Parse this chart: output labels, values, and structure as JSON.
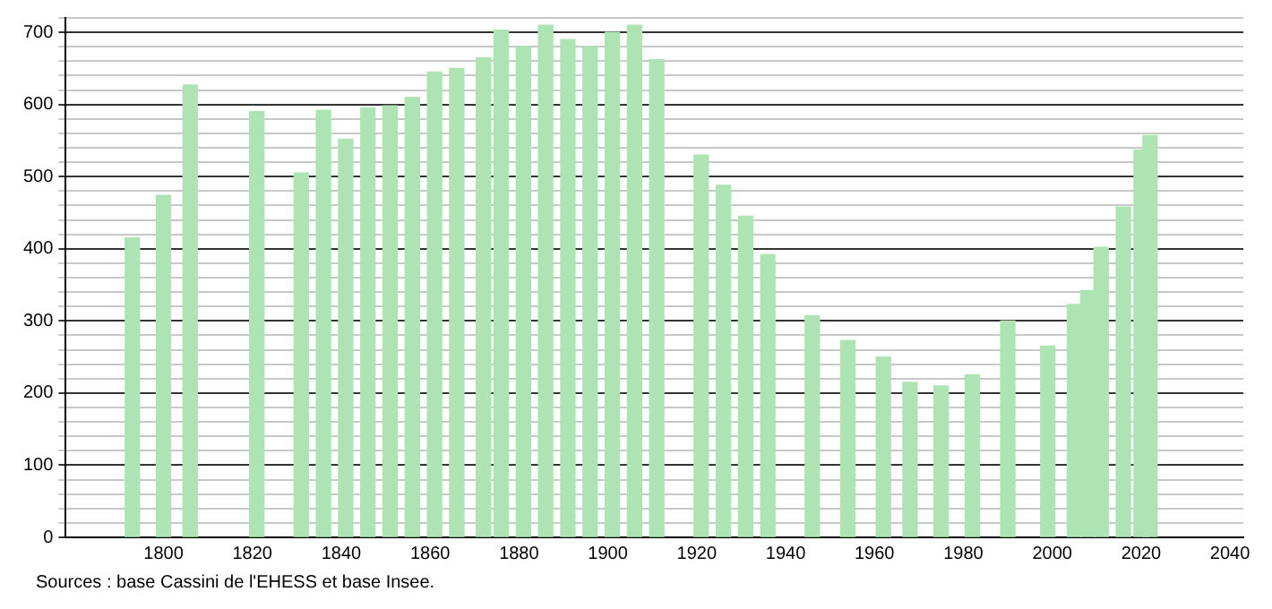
{
  "chart_data": {
    "type": "bar",
    "x": [
      1793,
      1800,
      1806,
      1821,
      1831,
      1836,
      1841,
      1846,
      1851,
      1856,
      1861,
      1866,
      1872,
      1876,
      1881,
      1886,
      1891,
      1896,
      1901,
      1906,
      1911,
      1921,
      1926,
      1931,
      1936,
      1946,
      1954,
      1962,
      1968,
      1975,
      1982,
      1990,
      1999,
      2005,
      2008,
      2011,
      2016,
      2020,
      2022
    ],
    "values": [
      415,
      474,
      627,
      590,
      505,
      592,
      552,
      595,
      598,
      610,
      645,
      650,
      665,
      703,
      680,
      710,
      690,
      680,
      700,
      710,
      662,
      530,
      488,
      445,
      392,
      307,
      273,
      250,
      215,
      210,
      225,
      300,
      265,
      323,
      342,
      402,
      458,
      537,
      557
    ],
    "color": "#aee4b4",
    "xlim": [
      1778,
      2043
    ],
    "xticks": [
      1800,
      1820,
      1840,
      1860,
      1880,
      1900,
      1920,
      1940,
      1960,
      1980,
      2000,
      2020,
      2040
    ],
    "ylim": [
      0,
      720
    ],
    "yticks": [
      0,
      {
        "value": 20,
        "label": null
      },
      {
        "value": 40,
        "label": null
      },
      {
        "value": 60,
        "label": null
      },
      {
        "value": 80,
        "label": null
      },
      100,
      {
        "value": 120,
        "label": null
      },
      {
        "value": 140,
        "label": null
      },
      {
        "value": 160,
        "label": null
      },
      {
        "value": 180,
        "label": null
      },
      200,
      {
        "value": 220,
        "label": null
      },
      {
        "value": 240,
        "label": null
      },
      {
        "value": 260,
        "label": null
      },
      {
        "value": 280,
        "label": null
      },
      300,
      {
        "value": 320,
        "label": null
      },
      {
        "value": 340,
        "label": null
      },
      {
        "value": 360,
        "label": null
      },
      {
        "value": 380,
        "label": null
      },
      400,
      {
        "value": 420,
        "label": null
      },
      {
        "value": 440,
        "label": null
      },
      {
        "value": 460,
        "label": null
      },
      {
        "value": 480,
        "label": null
      },
      500,
      {
        "value": 520,
        "label": null
      },
      {
        "value": 540,
        "label": null
      },
      {
        "value": 560,
        "label": null
      },
      {
        "value": 580,
        "label": null
      },
      600,
      {
        "value": 620,
        "label": null
      },
      {
        "value": 640,
        "label": null
      },
      {
        "value": 660,
        "label": null
      },
      {
        "value": 680,
        "label": null
      },
      700,
      {
        "value": 720,
        "label": null
      }
    ],
    "grid": "y",
    "annotations": [
      "Sources : base Cassini de l'EHESS et base Insee."
    ]
  }
}
